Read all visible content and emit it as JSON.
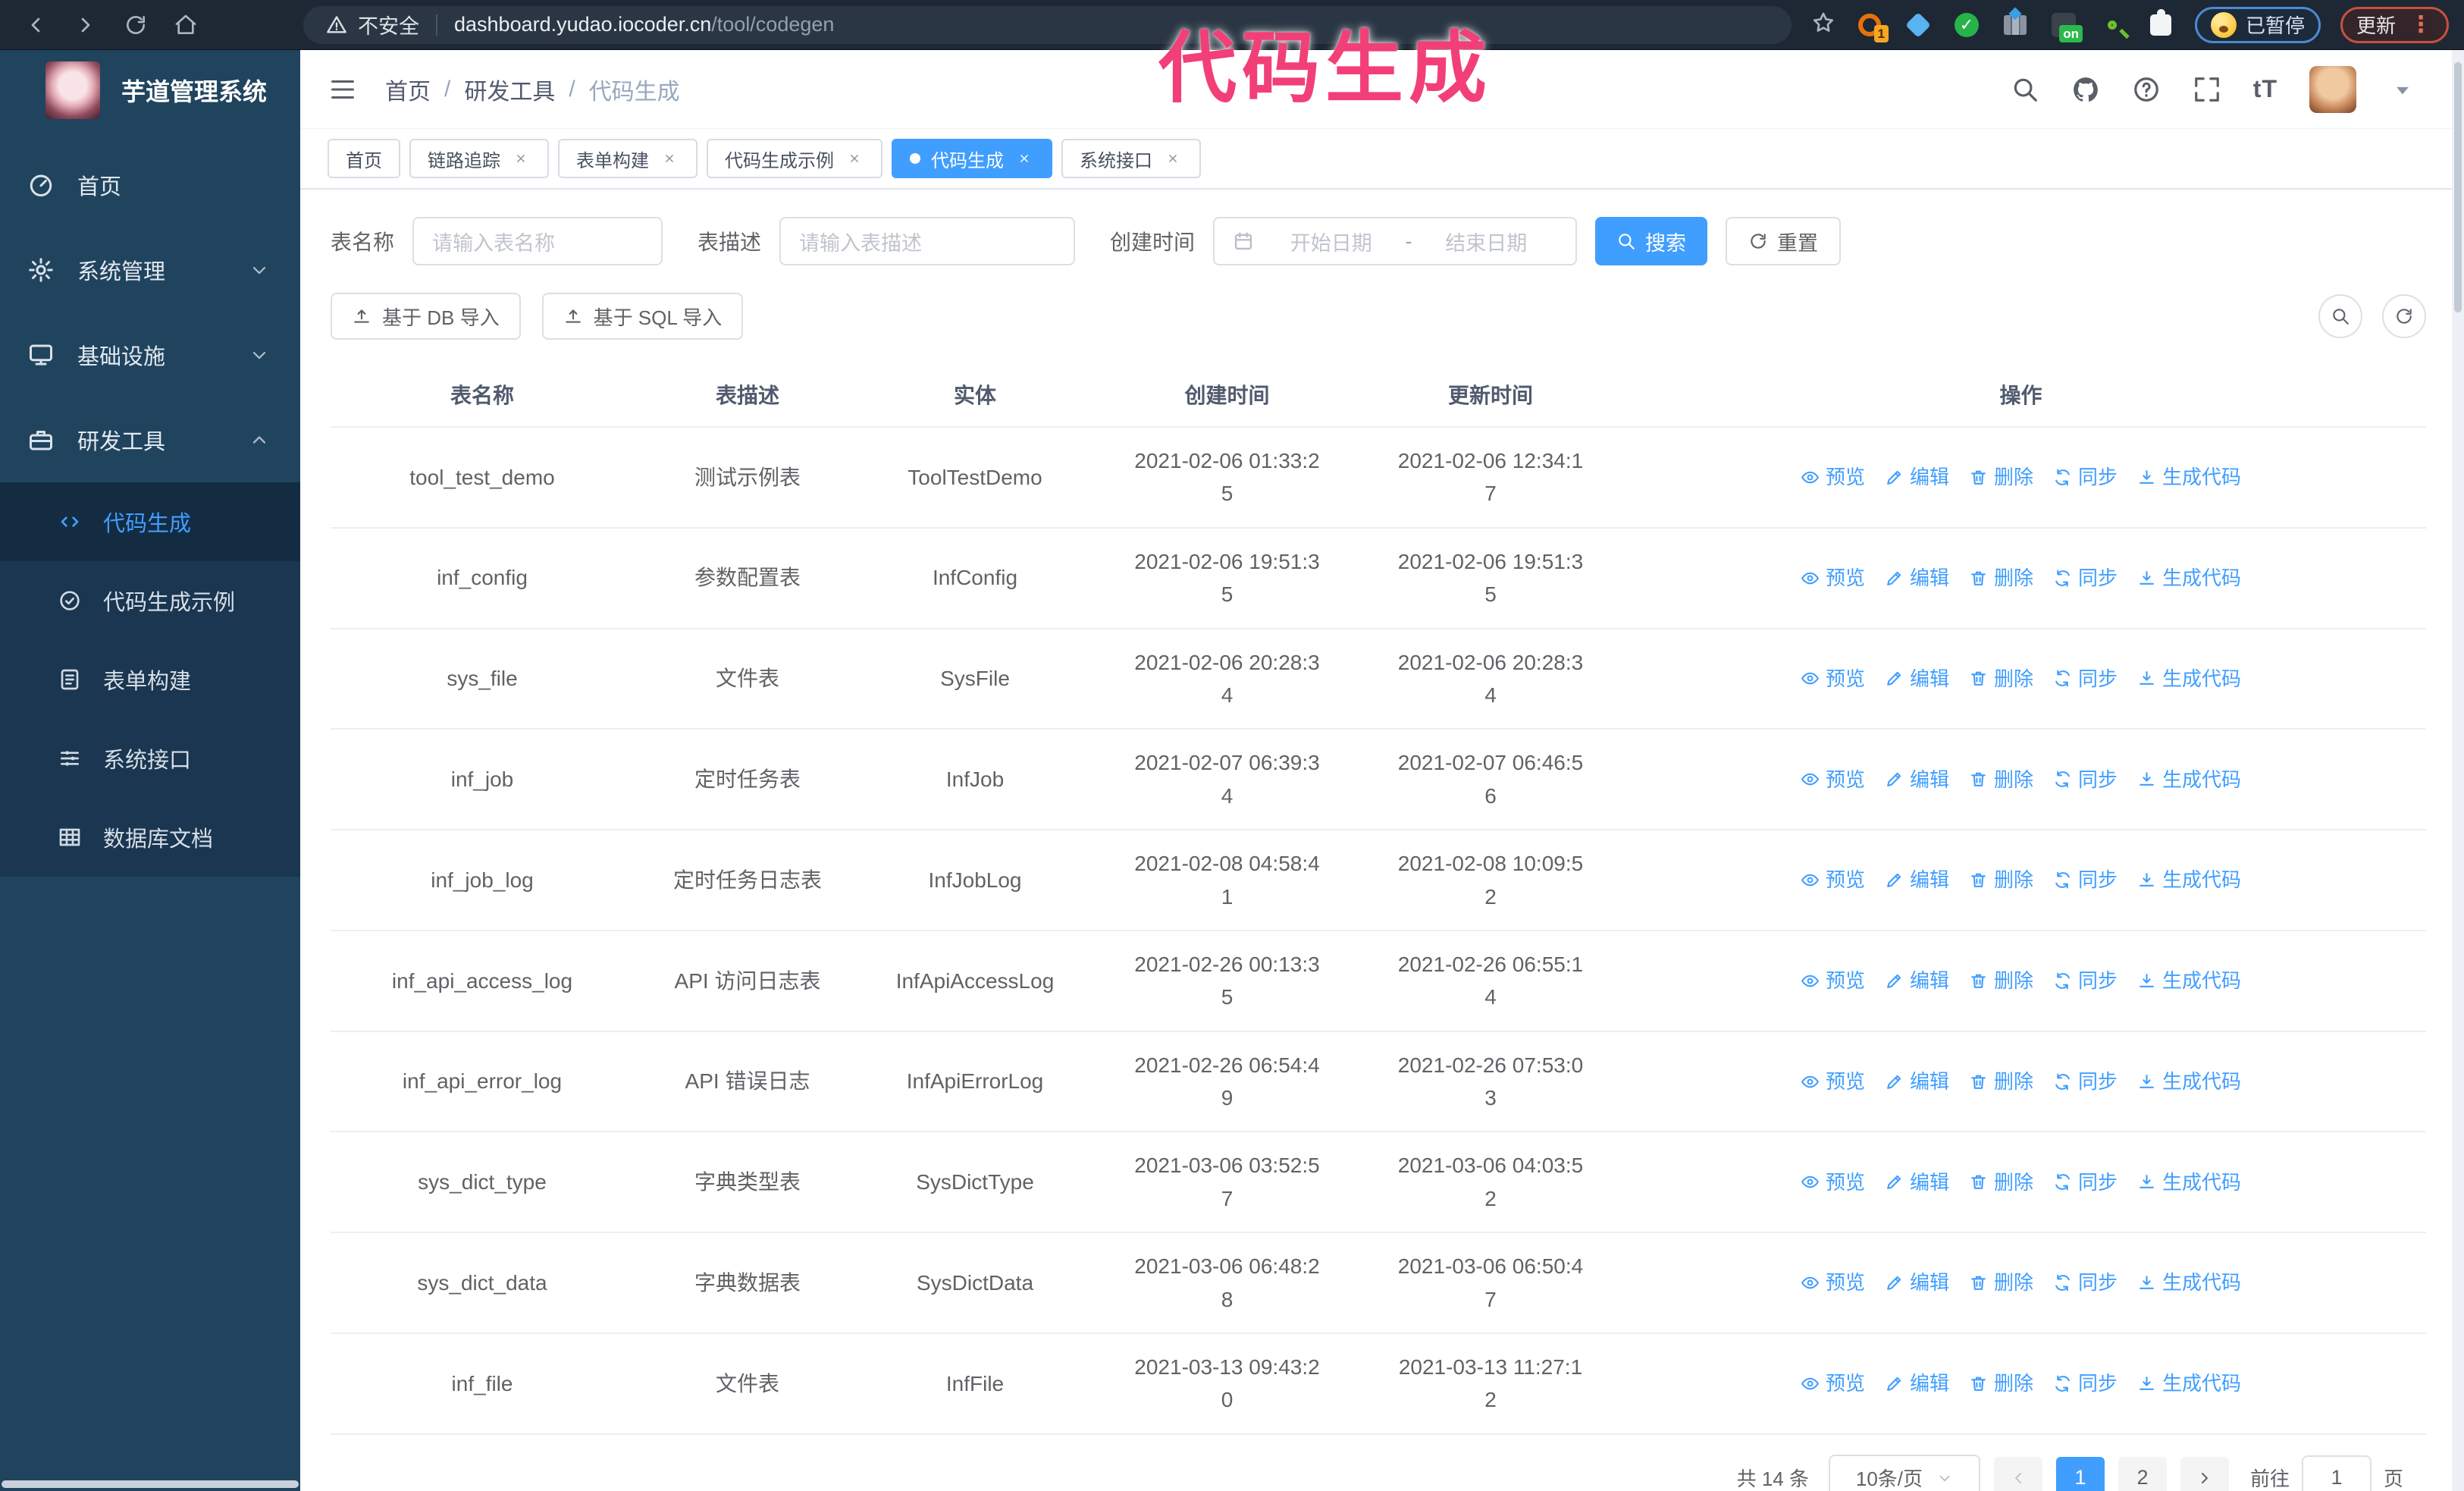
{
  "colors": {
    "accent": "#409eff",
    "chrome_bg": "#1d2834",
    "sidebar_bg": "#20445e",
    "submenu_bg": "#1a3650",
    "annotation_pink": "#f23f78",
    "link_blue": "#409eff",
    "table_border": "#ebeef5"
  },
  "browser": {
    "security_warning": "不安全",
    "url_host": "dashboard.yudao.iocoder.cn",
    "url_path": "/tool/codegen",
    "extension_icons": [
      "ring-1-badge",
      "gem",
      "green-check",
      "columns-diamond",
      "dark-on-badge",
      "green-key",
      "puzzle"
    ],
    "extension_badge_count": "1",
    "extension_badge_on": "on",
    "paused_badge": "已暂停",
    "update_button": "更新",
    "menu_dots": "⋮"
  },
  "annotation": {
    "text": "代码生成"
  },
  "app": {
    "title": "芋道管理系统",
    "breadcrumb": {
      "items": [
        "首页",
        "研发工具",
        "代码生成"
      ],
      "separator": "/"
    },
    "sidebar": {
      "items": [
        {
          "label": "首页",
          "icon": "dashboard"
        },
        {
          "label": "系统管理",
          "icon": "gear",
          "chevron": "down"
        },
        {
          "label": "基础设施",
          "icon": "monitor",
          "chevron": "down"
        },
        {
          "label": "研发工具",
          "icon": "toolbox",
          "chevron": "up",
          "expanded": true,
          "children": [
            {
              "label": "代码生成",
              "icon": "code",
              "active": true
            },
            {
              "label": "代码生成示例",
              "icon": "example"
            },
            {
              "label": "表单构建",
              "icon": "form"
            },
            {
              "label": "系统接口",
              "icon": "api"
            },
            {
              "label": "数据库文档",
              "icon": "database"
            }
          ]
        }
      ]
    },
    "tabs": {
      "items": [
        {
          "label": "首页",
          "closable": false,
          "active": false
        },
        {
          "label": "链路追踪",
          "closable": true,
          "active": false
        },
        {
          "label": "表单构建",
          "closable": true,
          "active": false
        },
        {
          "label": "代码生成示例",
          "closable": true,
          "active": false
        },
        {
          "label": "代码生成",
          "closable": true,
          "active": true
        },
        {
          "label": "系统接口",
          "closable": true,
          "active": false
        }
      ]
    },
    "search": {
      "name_label": "表名称",
      "name_placeholder": "请输入表名称",
      "desc_label": "表描述",
      "desc_placeholder": "请输入表描述",
      "time_label": "创建时间",
      "start_placeholder": "开始日期",
      "range_separator": "-",
      "end_placeholder": "结束日期",
      "search_button": "搜索",
      "reset_button": "重置"
    },
    "toolbar": {
      "db_import": "基于 DB 导入",
      "sql_import": "基于 SQL 导入",
      "right_icons": [
        "search",
        "refresh"
      ]
    },
    "table": {
      "headers": [
        "表名称",
        "表描述",
        "实体",
        "创建时间",
        "更新时间",
        "操作"
      ],
      "action_labels": [
        "预览",
        "编辑",
        "删除",
        "同步",
        "生成代码"
      ],
      "action_icons": [
        "eye",
        "edit",
        "trash",
        "sync",
        "download"
      ],
      "rows": [
        {
          "name": "tool_test_demo",
          "desc": "测试示例表",
          "entity": "ToolTestDemo",
          "created": "2021-02-06 01:33:25",
          "updated": "2021-02-06 12:34:17"
        },
        {
          "name": "inf_config",
          "desc": "参数配置表",
          "entity": "InfConfig",
          "created": "2021-02-06 19:51:35",
          "updated": "2021-02-06 19:51:35"
        },
        {
          "name": "sys_file",
          "desc": "文件表",
          "entity": "SysFile",
          "created": "2021-02-06 20:28:34",
          "updated": "2021-02-06 20:28:34"
        },
        {
          "name": "inf_job",
          "desc": "定时任务表",
          "entity": "InfJob",
          "created": "2021-02-07 06:39:34",
          "updated": "2021-02-07 06:46:56"
        },
        {
          "name": "inf_job_log",
          "desc": "定时任务日志表",
          "entity": "InfJobLog",
          "created": "2021-02-08 04:58:41",
          "updated": "2021-02-08 10:09:52"
        },
        {
          "name": "inf_api_access_log",
          "desc": "API 访问日志表",
          "entity": "InfApiAccessLog",
          "created": "2021-02-26 00:13:35",
          "updated": "2021-02-26 06:55:14"
        },
        {
          "name": "inf_api_error_log",
          "desc": "API 错误日志",
          "entity": "InfApiErrorLog",
          "created": "2021-02-26 06:54:49",
          "updated": "2021-02-26 07:53:03"
        },
        {
          "name": "sys_dict_type",
          "desc": "字典类型表",
          "entity": "SysDictType",
          "created": "2021-03-06 03:52:57",
          "updated": "2021-03-06 04:03:52"
        },
        {
          "name": "sys_dict_data",
          "desc": "字典数据表",
          "entity": "SysDictData",
          "created": "2021-03-06 06:48:28",
          "updated": "2021-03-06 06:50:47"
        },
        {
          "name": "inf_file",
          "desc": "文件表",
          "entity": "InfFile",
          "created": "2021-03-13 09:43:20",
          "updated": "2021-03-13 11:27:12"
        }
      ]
    },
    "pagination": {
      "total_text": "共 14 条",
      "page_size": "10条/页",
      "pages": [
        "1",
        "2"
      ],
      "active_page": "1",
      "goto_label": "前往",
      "goto_value": "1",
      "page_unit": "页"
    }
  }
}
